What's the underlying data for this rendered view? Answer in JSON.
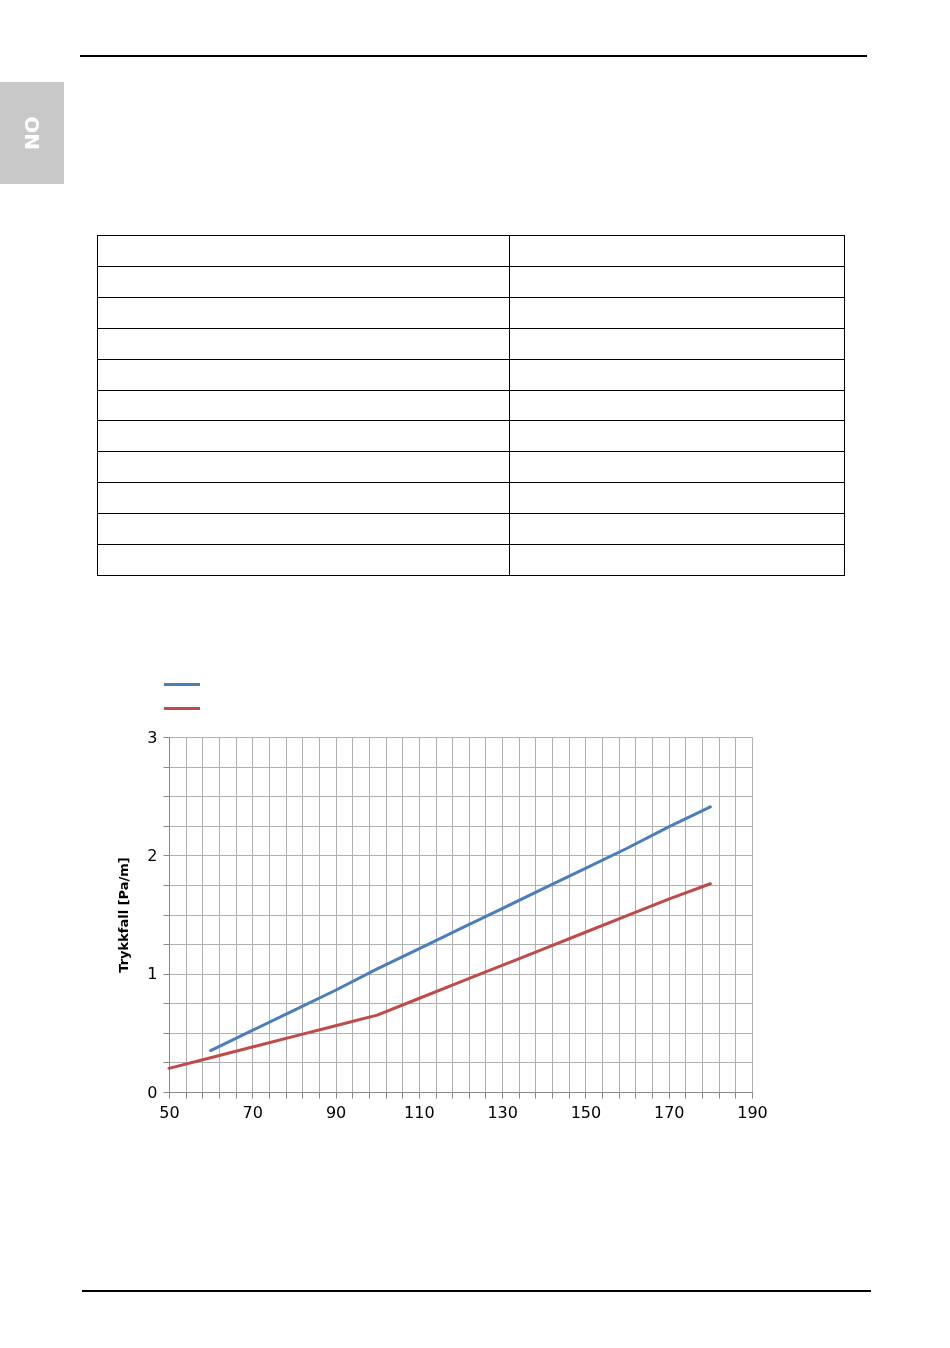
{
  "chart_data": {
    "type": "line",
    "ylabel": "Trykkfall [Pa/m]",
    "annotations": [
      "NO"
    ],
    "xlim": [
      50,
      190
    ],
    "xticks": [
      50,
      {
        "value": 54,
        "label": null
      },
      {
        "value": 58,
        "label": null
      },
      {
        "value": 62,
        "label": null
      },
      {
        "value": 66,
        "label": null
      },
      70,
      {
        "value": 74,
        "label": null
      },
      {
        "value": 78,
        "label": null
      },
      {
        "value": 82,
        "label": null
      },
      {
        "value": 86,
        "label": null
      },
      90,
      {
        "value": 94,
        "label": null
      },
      {
        "value": 98,
        "label": null
      },
      {
        "value": 102,
        "label": null
      },
      {
        "value": 106,
        "label": null
      },
      110,
      {
        "value": 114,
        "label": null
      },
      {
        "value": 118,
        "label": null
      },
      {
        "value": 122,
        "label": null
      },
      {
        "value": 126,
        "label": null
      },
      130,
      {
        "value": 134,
        "label": null
      },
      {
        "value": 138,
        "label": null
      },
      {
        "value": 142,
        "label": null
      },
      {
        "value": 146,
        "label": null
      },
      150,
      {
        "value": 154,
        "label": null
      },
      {
        "value": 158,
        "label": null
      },
      {
        "value": 162,
        "label": null
      },
      {
        "value": 166,
        "label": null
      },
      170,
      {
        "value": 174,
        "label": null
      },
      {
        "value": 178,
        "label": null
      },
      {
        "value": 182,
        "label": null
      },
      {
        "value": 186,
        "label": null
      },
      190
    ],
    "ylim": [
      0,
      3
    ],
    "yticks": [
      0,
      {
        "value": 0.25,
        "label": null
      },
      {
        "value": 0.5,
        "label": null
      },
      {
        "value": 0.75,
        "label": null
      },
      1,
      {
        "value": 1.25,
        "label": null
      },
      {
        "value": 1.5,
        "label": null
      },
      {
        "value": 1.75,
        "label": null
      },
      2,
      {
        "value": 2.25,
        "label": null
      },
      {
        "value": 2.5,
        "label": null
      },
      {
        "value": 2.75,
        "label": null
      },
      3
    ],
    "grid": true,
    "marker": "none",
    "line_style": "solid",
    "series": [
      {
        "color": "#4a7ebb",
        "x": [
          60,
          70,
          80,
          90,
          100,
          110,
          120,
          130,
          140,
          150,
          160,
          170,
          180
        ],
        "values": [
          0.35,
          0.52,
          0.69,
          0.86,
          1.04,
          1.21,
          1.38,
          1.55,
          1.72,
          1.89,
          2.06,
          2.24,
          2.41
        ]
      },
      {
        "color": "#be4b48",
        "x": [
          50,
          60,
          70,
          80,
          90,
          100,
          110,
          120,
          130,
          140,
          150,
          160,
          170,
          180
        ],
        "values": [
          0.2,
          0.29,
          0.38,
          0.47,
          0.56,
          0.65,
          0.79,
          0.93,
          1.07,
          1.21,
          1.35,
          1.49,
          1.63,
          1.76
        ]
      }
    ]
  }
}
